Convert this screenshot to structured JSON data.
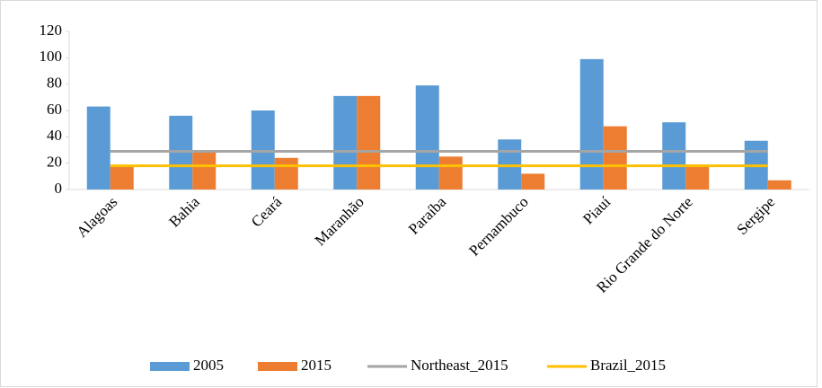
{
  "chart_data": {
    "type": "bar",
    "categories": [
      "Alagoas",
      "Bahia",
      "Ceará",
      "Maranhão",
      "Paraíba",
      "Pernambuco",
      "Piauí",
      "Rio Grande do Norte",
      "Sergipe"
    ],
    "series": [
      {
        "name": "2005",
        "color": "#5b9bd5",
        "values": [
          63,
          56,
          60,
          71,
          79,
          38,
          99,
          51,
          37
        ]
      },
      {
        "name": "2015",
        "color": "#ed7d31",
        "values": [
          18,
          29,
          24,
          71,
          25,
          12,
          48,
          19,
          7
        ]
      },
      {
        "name": "Northeast_2015",
        "color": "#a5a5a5",
        "type": "line",
        "values": [
          29,
          29,
          29,
          29,
          29,
          29,
          29,
          29,
          29
        ]
      },
      {
        "name": "Brazil_2015",
        "color": "#ffc000",
        "type": "line",
        "values": [
          18,
          18,
          18,
          18,
          18,
          18,
          18,
          18,
          18
        ]
      }
    ],
    "ylim": [
      0,
      120
    ],
    "yticks": [
      0,
      20,
      40,
      60,
      80,
      100,
      120
    ],
    "grid": false,
    "legend": "bottom"
  }
}
